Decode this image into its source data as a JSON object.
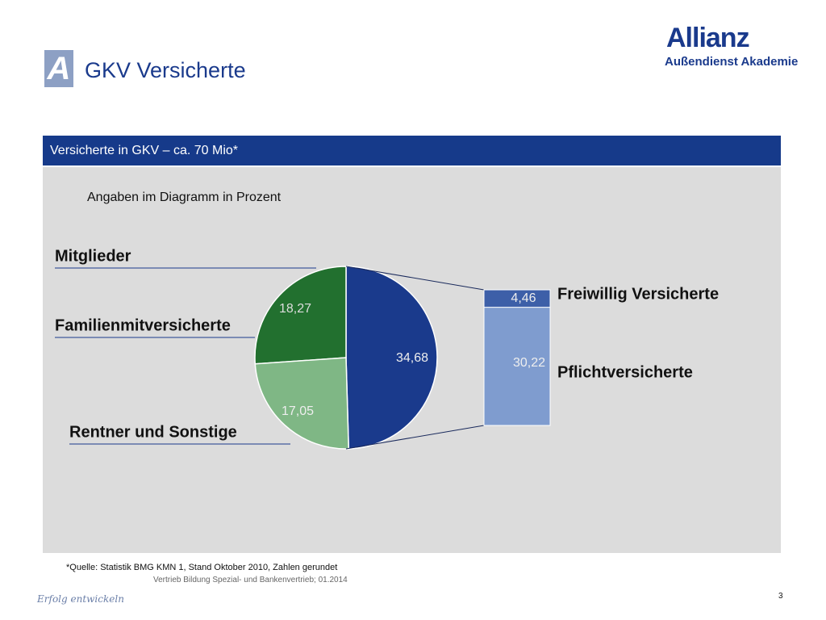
{
  "header": {
    "logo_letter": "A",
    "title": "GKV Versicherte",
    "brand": "Allianz",
    "brand_subtitle": "Außendienst Akademie"
  },
  "box_title": "Versicherte in GKV – ca. 70 Mio*",
  "note": "Angaben im Diagramm in Prozent",
  "chart_data": [
    {
      "type": "pie",
      "categories": [
        "Mitglieder",
        "Familienmitversicherte",
        "Rentner und Sonstige"
      ],
      "values": [
        34.68,
        18.27,
        17.05
      ],
      "value_labels": [
        "34,68",
        "18,27",
        "17,05"
      ],
      "colors": [
        "#1a3a8c",
        "#22702f",
        "#7fb785"
      ]
    },
    {
      "type": "stacked-bar",
      "series": [
        {
          "name": "Pflichtversicherte",
          "color": "#7f9ccf",
          "values": [
            30.22
          ],
          "value_labels": [
            "30,22"
          ]
        },
        {
          "name": "Freiwillig Versicherte",
          "color": "#3d5fa8",
          "values": [
            4.46
          ],
          "value_labels": [
            "4,46"
          ]
        }
      ]
    }
  ],
  "footer": {
    "source": "*Quelle: Statistik BMG KMN 1, Stand Oktober 2010, Zahlen gerundet",
    "department": "Vertrieb Bildung Spezial- und Bankenvertrieb; 01.2014",
    "page": "3",
    "motto": "Erfolg entwickeln"
  }
}
